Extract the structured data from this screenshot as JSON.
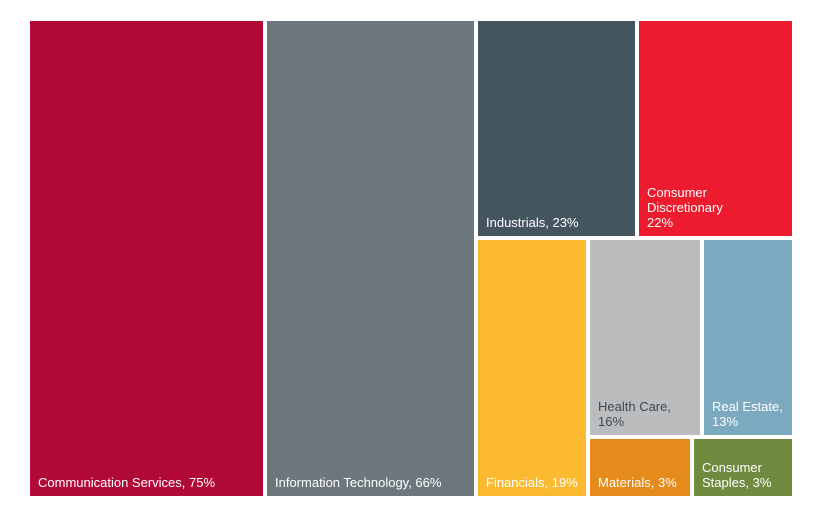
{
  "chart_data": {
    "type": "treemap",
    "title": "",
    "items": [
      {
        "label_line1": "Communication Services, 75%",
        "label_line2": "",
        "name": "Communication Services",
        "value": 75,
        "color": "#b20a38",
        "text_color": "#ffffff"
      },
      {
        "label_line1": "Information Technology, 66%",
        "label_line2": "",
        "name": "Information Technology",
        "value": 66,
        "color": "#6b767d",
        "text_color": "#ffffff"
      },
      {
        "label_line1": "Industrials, 23%",
        "label_line2": "",
        "name": "Industrials",
        "value": 23,
        "color": "#455560",
        "text_color": "#ffffff"
      },
      {
        "label_line1": "Consumer Discretionary",
        "label_line2": "22%",
        "name": "Consumer Discretionary",
        "value": 22,
        "color": "#ed1b2e",
        "text_color": "#ffffff"
      },
      {
        "label_line1": "Financials, 19%",
        "label_line2": "",
        "name": "Financials",
        "value": 19,
        "color": "#fbb92f",
        "text_color": "#ffffff"
      },
      {
        "label_line1": "Health Care,",
        "label_line2": "16%",
        "name": "Health Care",
        "value": 16,
        "color": "#bbbcbe",
        "text_color": "#3e4a52"
      },
      {
        "label_line1": "Real Estate,",
        "label_line2": "13%",
        "name": "Real Estate",
        "value": 13,
        "color": "#7ba9c0",
        "text_color": "#ffffff"
      },
      {
        "label_line1": "Materials, 3%",
        "label_line2": "",
        "name": "Materials",
        "value": 3,
        "color": "#e58b1b",
        "text_color": "#ffffff"
      },
      {
        "label_line1": "Consumer",
        "label_line2": "Staples, 3%",
        "name": "Consumer Staples",
        "value": 3,
        "color": "#708a40",
        "text_color": "#ffffff"
      }
    ]
  }
}
